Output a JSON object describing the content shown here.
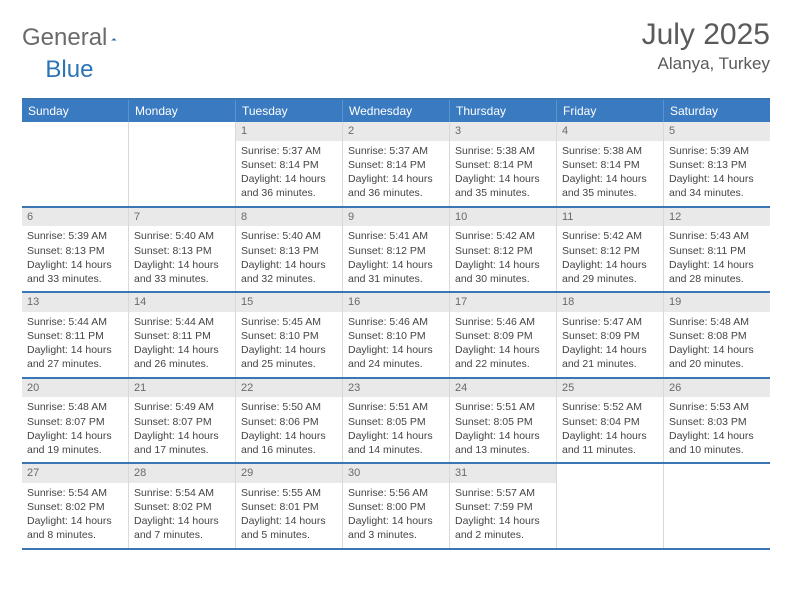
{
  "brand": {
    "part1": "General",
    "part2": "Blue"
  },
  "title": "July 2025",
  "location": "Alanya, Turkey",
  "colors": {
    "header_bg": "#3a7ac0",
    "header_border": "#3a76b3",
    "daynum_bg": "#e9e9e9",
    "cell_border": "#d9d9d9",
    "text": "#444444",
    "title_text": "#5a5a5a"
  },
  "day_names": [
    "Sunday",
    "Monday",
    "Tuesday",
    "Wednesday",
    "Thursday",
    "Friday",
    "Saturday"
  ],
  "weeks": [
    [
      null,
      null,
      {
        "n": "1",
        "sr": "5:37 AM",
        "ss": "8:14 PM",
        "dl": "14 hours and 36 minutes."
      },
      {
        "n": "2",
        "sr": "5:37 AM",
        "ss": "8:14 PM",
        "dl": "14 hours and 36 minutes."
      },
      {
        "n": "3",
        "sr": "5:38 AM",
        "ss": "8:14 PM",
        "dl": "14 hours and 35 minutes."
      },
      {
        "n": "4",
        "sr": "5:38 AM",
        "ss": "8:14 PM",
        "dl": "14 hours and 35 minutes."
      },
      {
        "n": "5",
        "sr": "5:39 AM",
        "ss": "8:13 PM",
        "dl": "14 hours and 34 minutes."
      }
    ],
    [
      {
        "n": "6",
        "sr": "5:39 AM",
        "ss": "8:13 PM",
        "dl": "14 hours and 33 minutes."
      },
      {
        "n": "7",
        "sr": "5:40 AM",
        "ss": "8:13 PM",
        "dl": "14 hours and 33 minutes."
      },
      {
        "n": "8",
        "sr": "5:40 AM",
        "ss": "8:13 PM",
        "dl": "14 hours and 32 minutes."
      },
      {
        "n": "9",
        "sr": "5:41 AM",
        "ss": "8:12 PM",
        "dl": "14 hours and 31 minutes."
      },
      {
        "n": "10",
        "sr": "5:42 AM",
        "ss": "8:12 PM",
        "dl": "14 hours and 30 minutes."
      },
      {
        "n": "11",
        "sr": "5:42 AM",
        "ss": "8:12 PM",
        "dl": "14 hours and 29 minutes."
      },
      {
        "n": "12",
        "sr": "5:43 AM",
        "ss": "8:11 PM",
        "dl": "14 hours and 28 minutes."
      }
    ],
    [
      {
        "n": "13",
        "sr": "5:44 AM",
        "ss": "8:11 PM",
        "dl": "14 hours and 27 minutes."
      },
      {
        "n": "14",
        "sr": "5:44 AM",
        "ss": "8:11 PM",
        "dl": "14 hours and 26 minutes."
      },
      {
        "n": "15",
        "sr": "5:45 AM",
        "ss": "8:10 PM",
        "dl": "14 hours and 25 minutes."
      },
      {
        "n": "16",
        "sr": "5:46 AM",
        "ss": "8:10 PM",
        "dl": "14 hours and 24 minutes."
      },
      {
        "n": "17",
        "sr": "5:46 AM",
        "ss": "8:09 PM",
        "dl": "14 hours and 22 minutes."
      },
      {
        "n": "18",
        "sr": "5:47 AM",
        "ss": "8:09 PM",
        "dl": "14 hours and 21 minutes."
      },
      {
        "n": "19",
        "sr": "5:48 AM",
        "ss": "8:08 PM",
        "dl": "14 hours and 20 minutes."
      }
    ],
    [
      {
        "n": "20",
        "sr": "5:48 AM",
        "ss": "8:07 PM",
        "dl": "14 hours and 19 minutes."
      },
      {
        "n": "21",
        "sr": "5:49 AM",
        "ss": "8:07 PM",
        "dl": "14 hours and 17 minutes."
      },
      {
        "n": "22",
        "sr": "5:50 AM",
        "ss": "8:06 PM",
        "dl": "14 hours and 16 minutes."
      },
      {
        "n": "23",
        "sr": "5:51 AM",
        "ss": "8:05 PM",
        "dl": "14 hours and 14 minutes."
      },
      {
        "n": "24",
        "sr": "5:51 AM",
        "ss": "8:05 PM",
        "dl": "14 hours and 13 minutes."
      },
      {
        "n": "25",
        "sr": "5:52 AM",
        "ss": "8:04 PM",
        "dl": "14 hours and 11 minutes."
      },
      {
        "n": "26",
        "sr": "5:53 AM",
        "ss": "8:03 PM",
        "dl": "14 hours and 10 minutes."
      }
    ],
    [
      {
        "n": "27",
        "sr": "5:54 AM",
        "ss": "8:02 PM",
        "dl": "14 hours and 8 minutes."
      },
      {
        "n": "28",
        "sr": "5:54 AM",
        "ss": "8:02 PM",
        "dl": "14 hours and 7 minutes."
      },
      {
        "n": "29",
        "sr": "5:55 AM",
        "ss": "8:01 PM",
        "dl": "14 hours and 5 minutes."
      },
      {
        "n": "30",
        "sr": "5:56 AM",
        "ss": "8:00 PM",
        "dl": "14 hours and 3 minutes."
      },
      {
        "n": "31",
        "sr": "5:57 AM",
        "ss": "7:59 PM",
        "dl": "14 hours and 2 minutes."
      },
      null,
      null
    ]
  ],
  "labels": {
    "sunrise": "Sunrise: ",
    "sunset": "Sunset: ",
    "daylight": "Daylight: "
  }
}
